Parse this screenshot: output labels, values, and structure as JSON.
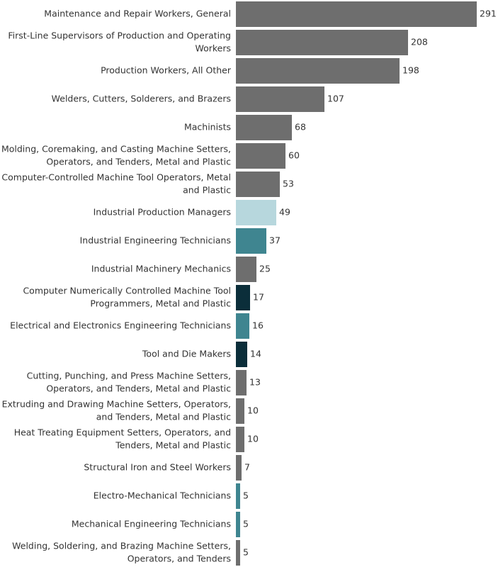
{
  "chart_data": {
    "type": "bar",
    "orientation": "horizontal",
    "grid": false,
    "xlim": [
      0,
      291
    ],
    "categories": [
      "Maintenance and Repair Workers, General",
      "First-Line Supervisors of Production and Operating Workers",
      "Production Workers, All Other",
      "Welders, Cutters, Solderers, and Brazers",
      "Machinists",
      "Molding, Coremaking, and Casting Machine Setters, Operators, and Tenders, Metal and Plastic",
      "Computer-Controlled Machine Tool Operators, Metal and Plastic",
      "Industrial Production Managers",
      "Industrial Engineering Technicians",
      "Industrial Machinery Mechanics",
      "Computer Numerically Controlled Machine Tool Programmers, Metal and Plastic",
      "Electrical and Electronics Engineering Technicians",
      "Tool and Die Makers",
      "Cutting, Punching, and Press Machine Setters, Operators, and Tenders, Metal and Plastic",
      "Extruding and Drawing Machine Setters, Operators, and Tenders, Metal and Plastic",
      "Heat Treating Equipment Setters, Operators, and Tenders, Metal and Plastic",
      "Structural Iron and Steel Workers",
      "Electro-Mechanical Technicians",
      "Mechanical Engineering Technicians",
      "Welding, Soldering, and Brazing Machine Setters, Operators, and Tenders"
    ],
    "label_lines": [
      [
        "Maintenance and Repair Workers, General"
      ],
      [
        "First-Line Supervisors of Production and Operating",
        "Workers"
      ],
      [
        "Production Workers, All Other"
      ],
      [
        "Welders, Cutters, Solderers, and Brazers"
      ],
      [
        "Machinists"
      ],
      [
        "Molding, Coremaking, and Casting Machine Setters,",
        "Operators, and Tenders, Metal and Plastic"
      ],
      [
        "Computer-Controlled Machine Tool Operators, Metal",
        "and Plastic"
      ],
      [
        "Industrial Production Managers"
      ],
      [
        "Industrial Engineering Technicians"
      ],
      [
        "Industrial Machinery Mechanics"
      ],
      [
        "Computer Numerically Controlled Machine Tool",
        "Programmers, Metal and Plastic"
      ],
      [
        "Electrical and Electronics Engineering Technicians"
      ],
      [
        "Tool and Die Makers"
      ],
      [
        "Cutting, Punching, and Press Machine Setters,",
        "Operators, and Tenders, Metal and Plastic"
      ],
      [
        "Extruding and Drawing Machine Setters, Operators,",
        "and Tenders, Metal and Plastic"
      ],
      [
        "Heat Treating Equipment Setters, Operators, and",
        "Tenders, Metal and Plastic"
      ],
      [
        "Structural Iron and Steel Workers"
      ],
      [
        "Electro-Mechanical Technicians"
      ],
      [
        "Mechanical Engineering Technicians"
      ],
      [
        "Welding, Soldering, and Brazing Machine Setters,",
        "Operators, and Tenders"
      ]
    ],
    "values": [
      291,
      208,
      198,
      107,
      68,
      60,
      53,
      49,
      37,
      25,
      17,
      16,
      14,
      13,
      10,
      10,
      7,
      5,
      5,
      5
    ],
    "bar_colors": [
      "#6e6e6e",
      "#6e6e6e",
      "#6e6e6e",
      "#6e6e6e",
      "#6e6e6e",
      "#6e6e6e",
      "#6e6e6e",
      "#b7d7dd",
      "#3f8590",
      "#6e6e6e",
      "#0b2e3a",
      "#3f8590",
      "#0b2e3a",
      "#6e6e6e",
      "#6e6e6e",
      "#6e6e6e",
      "#6e6e6e",
      "#3f8590",
      "#3f8590",
      "#6e6e6e"
    ]
  }
}
